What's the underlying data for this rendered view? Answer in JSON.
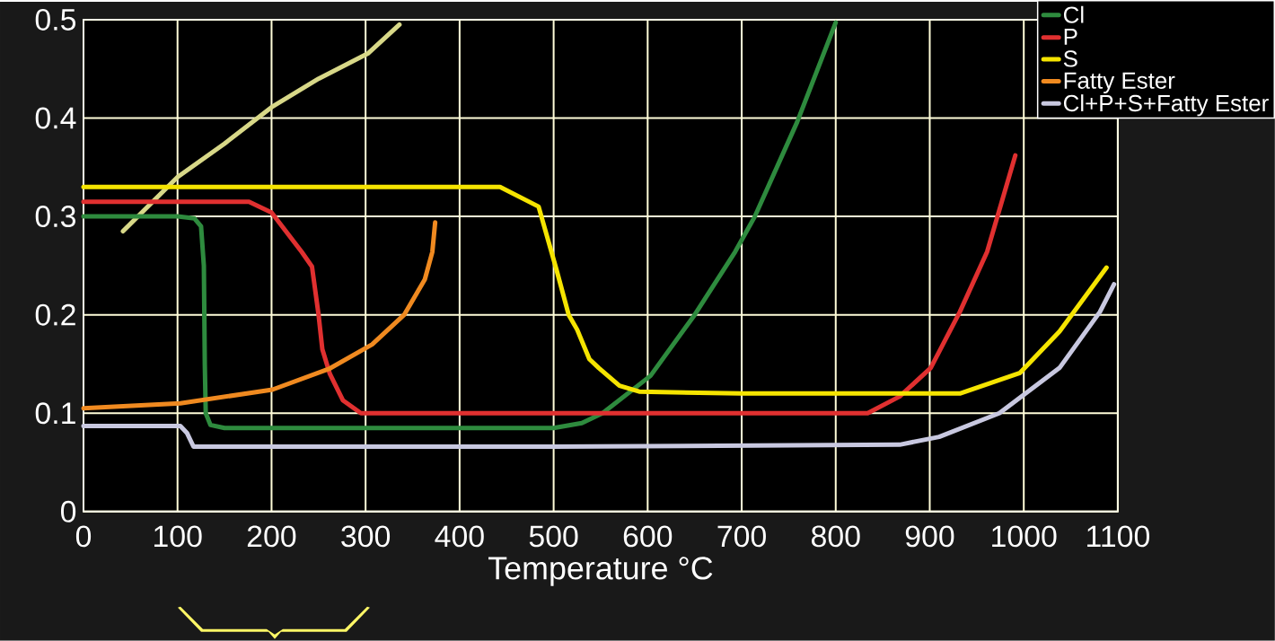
{
  "chart_data": {
    "type": "line",
    "xlabel": "Temperature °C",
    "xlim": [
      0,
      1100
    ],
    "ylim": [
      0,
      0.5
    ],
    "xticks": [
      0,
      100,
      200,
      300,
      400,
      500,
      600,
      700,
      800,
      900,
      1000,
      1100
    ],
    "yticks": [
      0,
      0.1,
      0.2,
      0.3,
      0.4,
      0.5
    ],
    "grid": true,
    "legend": "top right",
    "series": [
      {
        "color": "#d8d888",
        "x": [
          42,
          100,
          150,
          200,
          250,
          303,
          336
        ],
        "values": [
          0.285,
          0.34,
          0.374,
          0.411,
          0.44,
          0.466,
          0.495
        ]
      },
      {
        "name": "Cl",
        "color": "#2e8b3e",
        "x": [
          0,
          100,
          118,
          125,
          128,
          129,
          130,
          135,
          150,
          300,
          500,
          530,
          552,
          603,
          650,
          693,
          714,
          759,
          800
        ],
        "values": [
          0.3,
          0.3,
          0.298,
          0.29,
          0.25,
          0.15,
          0.1,
          0.088,
          0.085,
          0.085,
          0.085,
          0.09,
          0.1,
          0.138,
          0.2,
          0.264,
          0.3,
          0.396,
          0.497
        ]
      },
      {
        "name": "P",
        "color": "#e03030",
        "x": [
          0,
          176,
          200,
          232,
          243,
          250,
          254,
          262,
          276,
          295,
          600,
          834,
          868,
          901,
          932,
          961,
          991
        ],
        "values": [
          0.315,
          0.315,
          0.304,
          0.264,
          0.249,
          0.2,
          0.165,
          0.14,
          0.113,
          0.1,
          0.1,
          0.1,
          0.117,
          0.146,
          0.203,
          0.264,
          0.362
        ]
      },
      {
        "name": "S",
        "color": "#f5e400",
        "x": [
          0,
          443,
          484,
          503,
          516,
          525,
          538,
          548,
          570,
          591,
          700,
          932,
          996,
          1038,
          1088
        ],
        "values": [
          0.33,
          0.33,
          0.31,
          0.246,
          0.2,
          0.185,
          0.155,
          0.146,
          0.128,
          0.122,
          0.12,
          0.12,
          0.141,
          0.183,
          0.248
        ]
      },
      {
        "name": "Fatty Ester",
        "color": "#f08a20",
        "x": [
          0,
          103,
          201,
          261,
          307,
          341,
          363,
          371,
          374
        ],
        "values": [
          0.105,
          0.11,
          0.124,
          0.145,
          0.17,
          0.2,
          0.236,
          0.264,
          0.294
        ]
      },
      {
        "name": "Cl+P+S+Fatty Ester",
        "color": "#c8c8e0",
        "x": [
          0,
          103,
          110,
          117,
          500,
          868,
          910,
          974,
          1038,
          1081,
          1096
        ],
        "values": [
          0.087,
          0.087,
          0.08,
          0.066,
          0.066,
          0.068,
          0.076,
          0.1,
          0.146,
          0.203,
          0.231
        ]
      }
    ]
  }
}
